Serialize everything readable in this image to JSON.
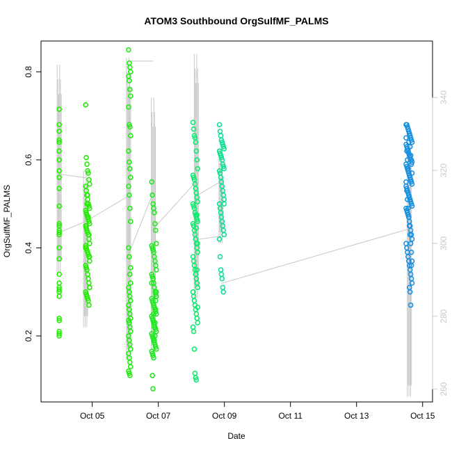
{
  "chart_data": {
    "type": "scatter",
    "title": "ATOM3 Southbound OrgSulfMF_PALMS",
    "xlabel": "Date",
    "ylabel": "OrgSulfMF_PALMS",
    "x_ticks": [
      "Oct 05",
      "Oct 07",
      "Oct 09",
      "Oct 11",
      "Oct 13",
      "Oct 15"
    ],
    "x_tick_days": [
      5,
      7,
      9,
      11,
      13,
      15
    ],
    "xlim_days": [
      3.45,
      15.3
    ],
    "ylim": [
      0.05,
      0.87
    ],
    "y_ticks": [
      0.2,
      0.4,
      0.6,
      0.8
    ],
    "y_tick_labels": [
      "0.2",
      "0.4",
      "0.6",
      "0.8"
    ],
    "y2_ticks": [
      260,
      280,
      300,
      320,
      340
    ],
    "y2_tick_labels": [
      "260",
      "280",
      "300",
      "320",
      "340"
    ],
    "y2lim": [
      256.5,
      355.5
    ],
    "grey_trace": {
      "description_axis": "right",
      "spikes": [
        {
          "day": 4.0,
          "lo": 292,
          "hi": 349
        },
        {
          "day": 4.8,
          "lo": 277,
          "hi": 320
        },
        {
          "day": 6.1,
          "lo": 268,
          "hi": 351
        },
        {
          "day": 6.85,
          "lo": 269,
          "hi": 340
        },
        {
          "day": 8.15,
          "lo": 285,
          "hi": 352
        },
        {
          "day": 8.9,
          "lo": 300,
          "hi": 326
        },
        {
          "day": 14.6,
          "lo": 258,
          "hi": 331
        }
      ],
      "connectors": [
        [
          4.0,
          319,
          4.8,
          318
        ],
        [
          4.0,
          303,
          4.8,
          306
        ],
        [
          4.8,
          306,
          6.1,
          313
        ],
        [
          6.1,
          297,
          6.85,
          314
        ],
        [
          6.1,
          350,
          6.85,
          350
        ],
        [
          6.85,
          304,
          8.15,
          317
        ],
        [
          8.15,
          301,
          8.9,
          302
        ],
        [
          8.15,
          313,
          8.9,
          317
        ],
        [
          8.9,
          289,
          14.6,
          304
        ]
      ]
    },
    "series": [
      {
        "color": "#22ee00",
        "x": [
          4.0,
          4.0,
          4.0,
          4.0,
          4.0,
          4.0,
          4.0,
          4.0,
          4.0,
          4.0,
          4.0,
          4.0,
          4.0,
          4.0,
          4.0,
          4.0,
          4.0,
          4.0,
          4.0,
          4.0,
          4.0,
          4.0,
          4.0,
          4.0,
          4.0,
          4.0,
          4.0,
          4.0,
          4.0
        ],
        "y": [
          0.715,
          0.68,
          0.665,
          0.645,
          0.64,
          0.62,
          0.6,
          0.575,
          0.56,
          0.535,
          0.495,
          0.455,
          0.44,
          0.435,
          0.43,
          0.4,
          0.375,
          0.34,
          0.32,
          0.31,
          0.305,
          0.3,
          0.29,
          0.24,
          0.235,
          0.21,
          0.205,
          0.2,
          0.45
        ]
      },
      {
        "color": "#22ee00",
        "x": [
          4.8,
          4.82,
          4.84,
          4.86,
          4.88,
          4.9,
          4.92,
          4.8,
          4.82,
          4.84,
          4.86,
          4.88,
          4.9,
          4.92,
          4.8,
          4.82,
          4.84,
          4.86,
          4.88,
          4.9,
          4.92,
          4.8,
          4.82,
          4.84,
          4.86,
          4.88,
          4.9,
          4.92,
          4.8,
          4.82,
          4.84,
          4.86,
          4.88,
          4.9,
          4.92,
          4.8,
          4.82,
          4.84,
          4.86,
          4.88,
          4.9,
          4.92,
          4.8,
          4.82,
          4.84,
          4.86,
          4.88,
          4.9,
          4.92,
          4.8,
          4.82,
          4.84,
          4.86,
          4.88,
          4.9,
          4.92
        ],
        "y": [
          0.725,
          0.605,
          0.59,
          0.575,
          0.57,
          0.555,
          0.545,
          0.54,
          0.53,
          0.52,
          0.51,
          0.5,
          0.495,
          0.49,
          0.485,
          0.48,
          0.475,
          0.47,
          0.465,
          0.46,
          0.455,
          0.45,
          0.445,
          0.44,
          0.435,
          0.43,
          0.42,
          0.41,
          0.405,
          0.4,
          0.395,
          0.39,
          0.385,
          0.38,
          0.37,
          0.36,
          0.355,
          0.35,
          0.34,
          0.33,
          0.32,
          0.31,
          0.3,
          0.295,
          0.29,
          0.285,
          0.28,
          0.27,
          0.31,
          0.4,
          0.45,
          0.5,
          0.52,
          0.47,
          0.43,
          0.38
        ]
      },
      {
        "color": "#20ec10",
        "x": [
          6.1,
          6.12,
          6.14,
          6.16,
          6.1,
          6.12,
          6.14,
          6.16,
          6.1,
          6.12,
          6.14,
          6.16,
          6.1,
          6.12,
          6.14,
          6.16,
          6.1,
          6.12,
          6.14,
          6.16,
          6.1,
          6.12,
          6.14,
          6.16,
          6.1,
          6.12,
          6.14,
          6.16,
          6.1,
          6.12,
          6.14,
          6.16,
          6.1,
          6.12,
          6.14,
          6.16,
          6.1,
          6.12,
          6.14,
          6.16,
          6.1,
          6.12,
          6.14,
          6.16,
          6.1,
          6.12,
          6.14,
          6.16
        ],
        "y": [
          0.85,
          0.82,
          0.81,
          0.8,
          0.79,
          0.78,
          0.76,
          0.745,
          0.72,
          0.68,
          0.675,
          0.655,
          0.62,
          0.595,
          0.58,
          0.56,
          0.54,
          0.52,
          0.49,
          0.46,
          0.4,
          0.38,
          0.34,
          0.32,
          0.31,
          0.3,
          0.29,
          0.28,
          0.27,
          0.26,
          0.25,
          0.24,
          0.235,
          0.23,
          0.22,
          0.21,
          0.2,
          0.19,
          0.18,
          0.17,
          0.16,
          0.15,
          0.14,
          0.13,
          0.12,
          0.115,
          0.11,
          0.355
        ]
      },
      {
        "color": "#20ea20",
        "x": [
          6.8,
          6.82,
          6.84,
          6.86,
          6.88,
          6.9,
          6.92,
          6.94,
          6.8,
          6.82,
          6.84,
          6.86,
          6.88,
          6.9,
          6.92,
          6.94,
          6.8,
          6.82,
          6.84,
          6.86,
          6.88,
          6.9,
          6.92,
          6.94,
          6.8,
          6.82,
          6.84,
          6.86,
          6.88,
          6.9,
          6.92,
          6.94,
          6.8,
          6.82,
          6.84,
          6.86,
          6.88,
          6.9,
          6.92,
          6.94,
          6.8,
          6.82,
          6.84,
          6.86,
          6.88,
          6.9,
          6.92,
          6.94,
          6.8,
          6.82,
          6.84,
          6.86,
          6.88,
          6.9,
          6.92,
          6.94,
          6.8,
          6.82,
          6.84,
          6.86,
          6.88,
          6.9,
          6.92,
          6.94
        ],
        "y": [
          0.55,
          0.52,
          0.5,
          0.49,
          0.48,
          0.455,
          0.44,
          0.41,
          0.405,
          0.4,
          0.395,
          0.39,
          0.38,
          0.37,
          0.36,
          0.35,
          0.34,
          0.335,
          0.33,
          0.32,
          0.31,
          0.3,
          0.295,
          0.29,
          0.285,
          0.28,
          0.275,
          0.27,
          0.265,
          0.26,
          0.255,
          0.25,
          0.245,
          0.24,
          0.235,
          0.23,
          0.225,
          0.22,
          0.215,
          0.21,
          0.205,
          0.2,
          0.195,
          0.19,
          0.185,
          0.18,
          0.175,
          0.17,
          0.165,
          0.16,
          0.155,
          0.15,
          0.19,
          0.23,
          0.26,
          0.29,
          0.32,
          0.11,
          0.08,
          0.25,
          0.22,
          0.2,
          0.28,
          0.3
        ]
      },
      {
        "color": "#10ea70",
        "x": [
          8.05,
          8.07,
          8.09,
          8.11,
          8.13,
          8.15,
          8.17,
          8.19,
          8.05,
          8.07,
          8.09,
          8.11,
          8.13,
          8.15,
          8.17,
          8.19,
          8.05,
          8.07,
          8.09,
          8.11,
          8.13,
          8.15,
          8.17,
          8.19,
          8.05,
          8.07,
          8.09,
          8.11,
          8.13,
          8.15,
          8.17,
          8.19,
          8.05,
          8.07,
          8.09,
          8.11,
          8.13,
          8.15,
          8.17,
          8.19,
          8.05,
          8.07,
          8.09,
          8.11,
          8.13,
          8.15,
          8.17,
          8.19,
          8.05,
          8.07,
          8.09,
          8.11,
          8.13,
          8.15,
          8.17,
          8.19,
          8.15,
          8.17,
          8.19
        ],
        "y": [
          0.685,
          0.67,
          0.655,
          0.65,
          0.64,
          0.62,
          0.6,
          0.58,
          0.565,
          0.56,
          0.555,
          0.545,
          0.535,
          0.525,
          0.515,
          0.505,
          0.5,
          0.495,
          0.49,
          0.48,
          0.475,
          0.47,
          0.465,
          0.46,
          0.455,
          0.45,
          0.44,
          0.43,
          0.42,
          0.41,
          0.4,
          0.39,
          0.38,
          0.37,
          0.36,
          0.35,
          0.34,
          0.33,
          0.32,
          0.31,
          0.3,
          0.29,
          0.28,
          0.27,
          0.26,
          0.25,
          0.24,
          0.23,
          0.22,
          0.21,
          0.17,
          0.115,
          0.105,
          0.1,
          0.35,
          0.41,
          0.445,
          0.475,
          0.265
        ]
      },
      {
        "color": "#10e090",
        "x": [
          8.85,
          8.87,
          8.89,
          8.91,
          8.93,
          8.95,
          8.97,
          8.99,
          8.85,
          8.87,
          8.89,
          8.91,
          8.93,
          8.95,
          8.97,
          8.99,
          8.85,
          8.87,
          8.89,
          8.91,
          8.93,
          8.95,
          8.97,
          8.99,
          8.85,
          8.87,
          8.89,
          8.91,
          8.93,
          8.95,
          8.97,
          8.99,
          8.85,
          8.87,
          8.89,
          8.91,
          8.93,
          8.95,
          8.97,
          8.99
        ],
        "y": [
          0.68,
          0.665,
          0.655,
          0.645,
          0.64,
          0.635,
          0.63,
          0.625,
          0.62,
          0.615,
          0.61,
          0.605,
          0.6,
          0.59,
          0.585,
          0.58,
          0.575,
          0.57,
          0.56,
          0.55,
          0.54,
          0.53,
          0.52,
          0.51,
          0.5,
          0.49,
          0.48,
          0.47,
          0.46,
          0.45,
          0.44,
          0.43,
          0.42,
          0.38,
          0.35,
          0.34,
          0.33,
          0.31,
          0.3,
          0.5
        ]
      },
      {
        "color": "#1890e0",
        "x": [
          14.5,
          14.52,
          14.54,
          14.56,
          14.58,
          14.6,
          14.62,
          14.64,
          14.66,
          14.68,
          14.5,
          14.52,
          14.54,
          14.56,
          14.58,
          14.6,
          14.62,
          14.64,
          14.66,
          14.68,
          14.5,
          14.52,
          14.54,
          14.56,
          14.58,
          14.6,
          14.62,
          14.64,
          14.66,
          14.68,
          14.5,
          14.52,
          14.54,
          14.56,
          14.58,
          14.6,
          14.62,
          14.64,
          14.66,
          14.68,
          14.5,
          14.52,
          14.54,
          14.56,
          14.58,
          14.6,
          14.62,
          14.64,
          14.66,
          14.68,
          14.5,
          14.52,
          14.54,
          14.56,
          14.58,
          14.6,
          14.62,
          14.64,
          14.66,
          14.68,
          14.5,
          14.52,
          14.54,
          14.56,
          14.58,
          14.6,
          14.62,
          14.64,
          14.66,
          14.68,
          14.5,
          14.52,
          14.54,
          14.56,
          14.58,
          14.6,
          14.62,
          14.64,
          14.66,
          14.68,
          14.6,
          14.62,
          14.64,
          14.66
        ],
        "y": [
          0.68,
          0.68,
          0.675,
          0.67,
          0.665,
          0.66,
          0.655,
          0.65,
          0.645,
          0.64,
          0.635,
          0.63,
          0.625,
          0.62,
          0.615,
          0.61,
          0.605,
          0.6,
          0.6,
          0.595,
          0.59,
          0.585,
          0.58,
          0.575,
          0.57,
          0.565,
          0.56,
          0.555,
          0.55,
          0.545,
          0.54,
          0.535,
          0.53,
          0.525,
          0.52,
          0.515,
          0.51,
          0.505,
          0.5,
          0.495,
          0.49,
          0.485,
          0.48,
          0.475,
          0.47,
          0.46,
          0.45,
          0.44,
          0.43,
          0.42,
          0.41,
          0.4,
          0.39,
          0.38,
          0.37,
          0.36,
          0.35,
          0.34,
          0.33,
          0.32,
          0.65,
          0.62,
          0.6,
          0.58,
          0.64,
          0.66,
          0.63,
          0.61,
          0.59,
          0.57,
          0.55,
          0.53,
          0.51,
          0.49,
          0.47,
          0.45,
          0.43,
          0.41,
          0.39,
          0.37,
          0.31,
          0.3,
          0.27,
          0.36
        ]
      }
    ]
  }
}
